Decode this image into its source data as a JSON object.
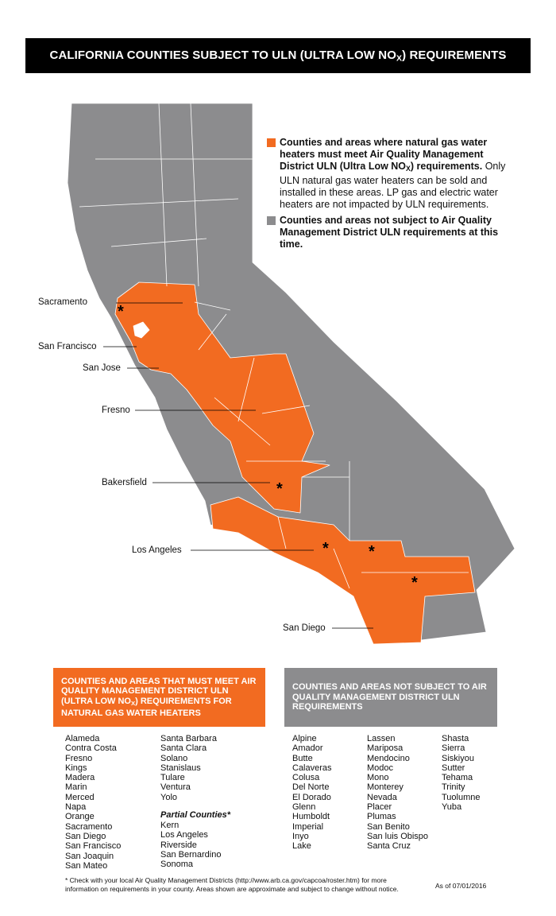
{
  "header": {
    "title": {
      "before": "CALIFORNIA COUNTIES SUBJECT TO ULN (ULTRA LOW NO",
      "subscript": "X",
      "after": ") REQUIREMENTS"
    }
  },
  "legend": {
    "uln": {
      "bold_before": "Counties and areas where natural gas water heaters must meet Air Quality Management District ULN (Ultra Low NO",
      "bold_subscript": "X",
      "bold_after": ") requirements.",
      "text": "Only ULN natural gas water heaters can be sold and installed in these areas. LP gas and electric water heaters are not impacted by ULN requirements."
    },
    "non_uln": {
      "bold": "Counties and areas not subject to Air Quality Management District ULN requirements at this time."
    }
  },
  "map_labels": [
    "Sacramento",
    "San Francisco",
    "San Jose",
    "Fresno",
    "Bakersfield",
    "Los Angeles",
    "San Diego"
  ],
  "uln_list": {
    "heading": {
      "before": "COUNTIES AND AREAS THAT MUST MEET AIR QUALITY MANAGEMENT DISTRICT ULN (ULTRA LOW NO",
      "subscript": "X",
      "after": ") REQUIREMENTS FOR NATURAL GAS WATER HEATERS"
    },
    "columns": [
      [
        "Alameda",
        "Contra Costa",
        "Fresno",
        "Kings",
        "Madera",
        "Marin",
        "Merced",
        "Napa",
        "Orange",
        "Sacramento",
        "San Diego",
        "San Francisco",
        "San Joaquin",
        "San Mateo"
      ],
      [
        "Santa Barbara",
        "Santa Clara",
        "Solano",
        "Stanislaus",
        "Tulare",
        "Ventura",
        "Yolo"
      ]
    ],
    "partial_heading": "Partial Counties*",
    "partial": [
      "Kern",
      "Los Angeles",
      "Riverside",
      "San Bernardino",
      "Sonoma"
    ]
  },
  "non_uln_list": {
    "heading": "COUNTIES AND AREAS NOT SUBJECT TO AIR QUALITY MANAGEMENT DISTRICT ULN REQUIREMENTS",
    "columns": [
      [
        "Alpine",
        "Amador",
        "Butte",
        "Calaveras",
        "Colusa",
        "Del Norte",
        "El Dorado",
        "Glenn",
        "Humboldt",
        "Imperial",
        "Inyo",
        "Lake"
      ],
      [
        "Lassen",
        "Mariposa",
        "Mendocino",
        "Modoc",
        "Mono",
        "Monterey",
        "Nevada",
        "Placer",
        "Plumas",
        "San Benito",
        "San luis Obispo",
        "Santa Cruz"
      ],
      [
        "Shasta",
        "Sierra",
        "Siskiyou",
        "Sutter",
        "Tehama",
        "Trinity",
        "Tuolumne",
        "Yuba"
      ]
    ]
  },
  "footnote": "* Check with your local Air Quality Management Districts (http://www.arb.ca.gov/capcoa/roster.htm) for more information on requirements in your county. Areas shown are approximate and subject to change without notice.",
  "date": "As of 07/01/2016"
}
